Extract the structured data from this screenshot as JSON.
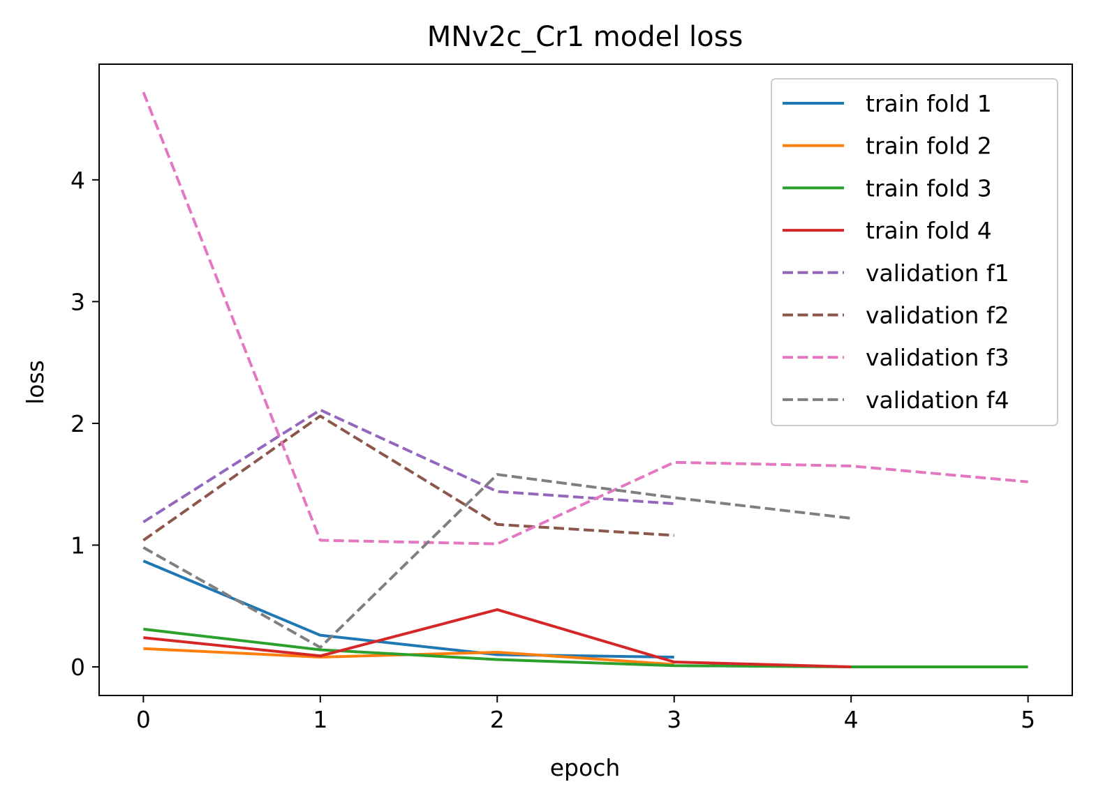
{
  "chart_data": {
    "type": "line",
    "title": "MNv2c_Cr1 model loss",
    "xlabel": "epoch",
    "ylabel": "loss",
    "xlim": [
      -0.25,
      5.25
    ],
    "ylim": [
      -0.235,
      4.95
    ],
    "xticks": [
      0,
      1,
      2,
      3,
      4,
      5
    ],
    "yticks": [
      0,
      1,
      2,
      3,
      4
    ],
    "grid": false,
    "legend_position": "top-right",
    "series": [
      {
        "name": "train fold 1",
        "color": "#1f77b4",
        "style": "solid",
        "x": [
          0,
          1,
          2,
          3
        ],
        "values": [
          0.87,
          0.26,
          0.1,
          0.08
        ]
      },
      {
        "name": "train fold 2",
        "color": "#ff7f0e",
        "style": "solid",
        "x": [
          0,
          1,
          2,
          3
        ],
        "values": [
          0.15,
          0.08,
          0.12,
          0.02
        ]
      },
      {
        "name": "train fold 3",
        "color": "#2ca02c",
        "style": "solid",
        "x": [
          0,
          1,
          2,
          3,
          4,
          5
        ],
        "values": [
          0.31,
          0.14,
          0.06,
          0.01,
          0.0,
          0.0
        ]
      },
      {
        "name": "train fold 4",
        "color": "#d62728",
        "style": "solid",
        "x": [
          0,
          1,
          2,
          3,
          4
        ],
        "values": [
          0.24,
          0.09,
          0.47,
          0.04,
          0.0
        ]
      },
      {
        "name": "validation f1",
        "color": "#9467bd",
        "style": "dashed",
        "x": [
          0,
          1,
          2,
          3
        ],
        "values": [
          1.19,
          2.11,
          1.44,
          1.34
        ]
      },
      {
        "name": "validation f2",
        "color": "#8c564b",
        "style": "dashed",
        "x": [
          0,
          1,
          2,
          3
        ],
        "values": [
          1.04,
          2.06,
          1.17,
          1.08
        ]
      },
      {
        "name": "validation f3",
        "color": "#e377c2",
        "style": "dashed",
        "x": [
          0,
          1,
          2,
          3,
          4,
          5
        ],
        "values": [
          4.72,
          1.04,
          1.01,
          1.68,
          1.65,
          1.52
        ]
      },
      {
        "name": "validation f4",
        "color": "#7f7f7f",
        "style": "dashed",
        "x": [
          0,
          1,
          2,
          3,
          4
        ],
        "values": [
          0.98,
          0.16,
          1.58,
          1.39,
          1.22
        ]
      }
    ]
  }
}
